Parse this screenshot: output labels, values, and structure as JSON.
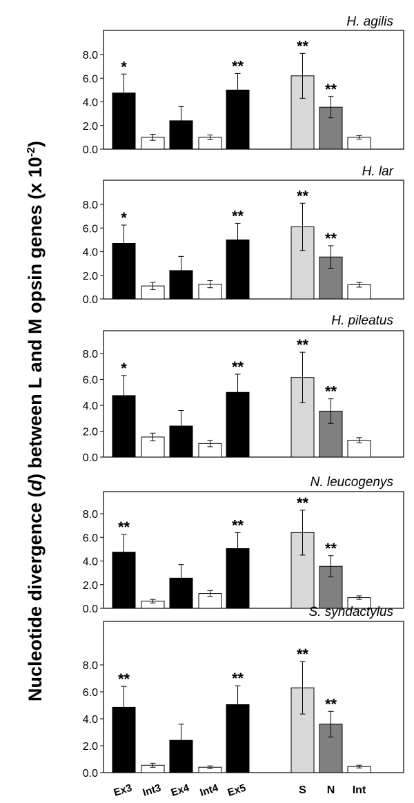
{
  "figure": {
    "ylabel_part1": "Nucleotide divergence (",
    "ylabel_var": "d",
    "ylabel_part2": ")  between L and M opsin genes (x 10",
    "ylabel_exp": "-2",
    "ylabel_close": ")"
  },
  "colors": {
    "exon": "#000000",
    "intron": "#ffffff",
    "synonymous": "#d9d9d9",
    "nonsynonymous": "#808080",
    "outline": "#000000"
  },
  "chart_data": [
    {
      "type": "bar",
      "title": "H. agilis",
      "categories": [
        "Ex3",
        "Int3",
        "Ex4",
        "Int4",
        "Ex5",
        "S",
        "N",
        "Int"
      ],
      "values": [
        4.75,
        1.0,
        2.4,
        1.0,
        5.0,
        6.2,
        3.55,
        1.0
      ],
      "error": [
        1.6,
        0.25,
        1.2,
        0.2,
        1.4,
        1.9,
        0.9,
        0.15
      ],
      "annotations": [
        "*",
        "",
        "",
        "",
        "**",
        "**",
        "**",
        ""
      ],
      "yticks": [
        "0.0",
        "2.0",
        "4.0",
        "6.0",
        "8.0"
      ],
      "ylim": [
        0,
        9.5
      ],
      "show_category_labels": false
    },
    {
      "type": "bar",
      "title": "H. lar",
      "categories": [
        "Ex3",
        "Int3",
        "Ex4",
        "Int4",
        "Ex5",
        "S",
        "N",
        "Int"
      ],
      "values": [
        4.7,
        1.1,
        2.4,
        1.25,
        5.0,
        6.1,
        3.55,
        1.2
      ],
      "error": [
        1.55,
        0.3,
        1.2,
        0.3,
        1.4,
        2.0,
        0.95,
        0.2
      ],
      "annotations": [
        "*",
        "",
        "",
        "",
        "**",
        "**",
        "**",
        ""
      ],
      "yticks": [
        "0.0",
        "2.0",
        "4.0",
        "6.0",
        "8.0"
      ],
      "ylim": [
        0,
        9.5
      ],
      "show_category_labels": false
    },
    {
      "type": "bar",
      "title": "H. pileatus",
      "categories": [
        "Ex3",
        "Int3",
        "Ex4",
        "Int4",
        "Ex5",
        "S",
        "N",
        "Int"
      ],
      "values": [
        4.75,
        1.55,
        2.4,
        1.05,
        5.0,
        6.15,
        3.55,
        1.3
      ],
      "error": [
        1.55,
        0.3,
        1.2,
        0.25,
        1.4,
        1.95,
        0.95,
        0.2
      ],
      "annotations": [
        "*",
        "",
        "",
        "",
        "**",
        "**",
        "**",
        ""
      ],
      "yticks": [
        "0.0",
        "2.0",
        "4.0",
        "6.0",
        "8.0"
      ],
      "ylim": [
        0,
        9.5
      ],
      "show_category_labels": false
    },
    {
      "type": "bar",
      "title": "N. leucogenys",
      "categories": [
        "Ex3",
        "Int3",
        "Ex4",
        "Int4",
        "Ex5",
        "S",
        "N",
        "Int"
      ],
      "values": [
        4.75,
        0.6,
        2.55,
        1.25,
        5.05,
        6.4,
        3.55,
        0.9
      ],
      "error": [
        1.5,
        0.15,
        1.15,
        0.25,
        1.35,
        1.9,
        0.9,
        0.15
      ],
      "annotations": [
        "**",
        "",
        "",
        "",
        "**",
        "**",
        "**",
        ""
      ],
      "yticks": [
        "0.0",
        "2.0",
        "4.0",
        "6.0",
        "8.0"
      ],
      "ylim": [
        0,
        9.5
      ],
      "show_category_labels": false
    },
    {
      "type": "bar",
      "title": "S. syndactylus",
      "categories": [
        "Ex3",
        "Int3",
        "Ex4",
        "Int4",
        "Ex5",
        "S",
        "N",
        "Int"
      ],
      "values": [
        4.85,
        0.55,
        2.4,
        0.4,
        5.05,
        6.3,
        3.6,
        0.45
      ],
      "error": [
        1.55,
        0.15,
        1.2,
        0.1,
        1.4,
        1.95,
        0.95,
        0.1
      ],
      "annotations": [
        "**",
        "",
        "",
        "",
        "**",
        "**",
        "**",
        ""
      ],
      "yticks": [
        "0.0",
        "2.0",
        "4.0",
        "6.0",
        "8.0"
      ],
      "ylim": [
        0,
        9.5
      ],
      "show_category_labels": true
    }
  ]
}
